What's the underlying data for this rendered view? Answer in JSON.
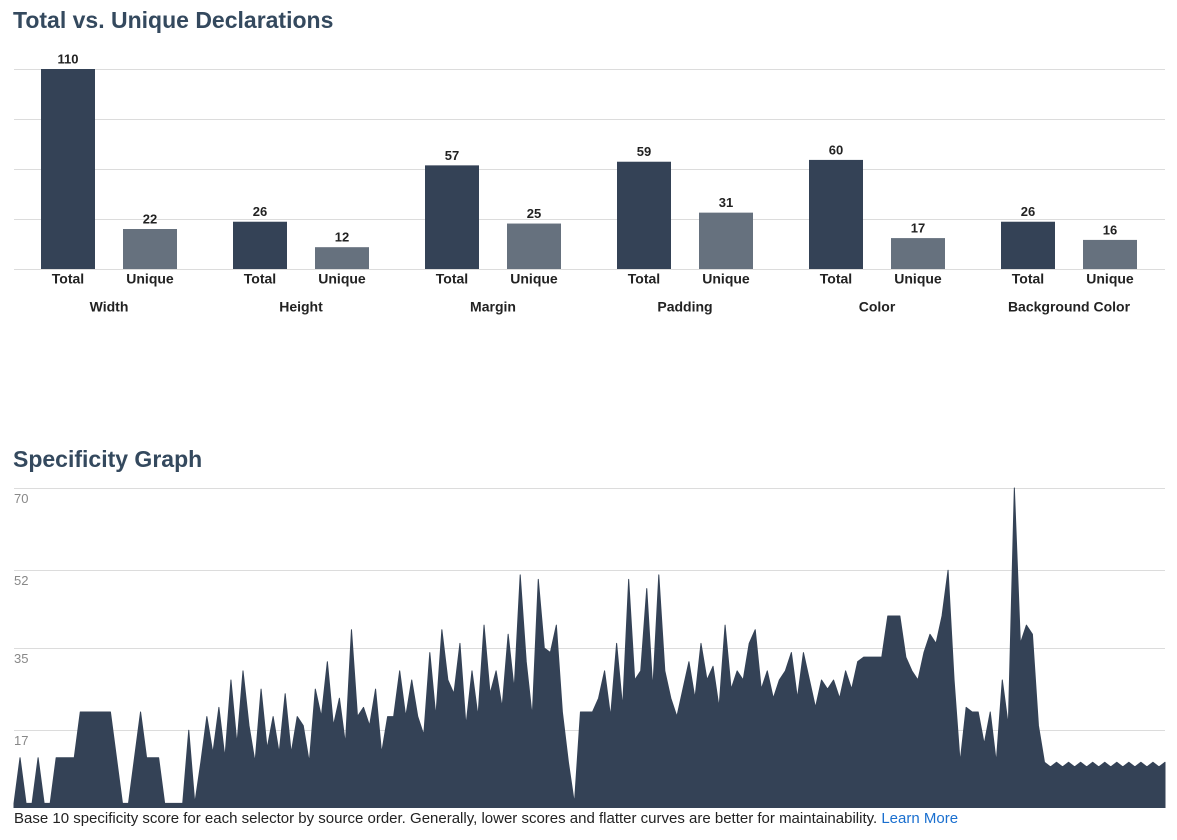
{
  "chart_data": [
    {
      "type": "bar",
      "title": "Total vs. Unique Declarations",
      "categories": [
        "Width",
        "Height",
        "Margin",
        "Padding",
        "Color",
        "Background Color"
      ],
      "series": [
        {
          "name": "Total",
          "color": "#344256",
          "values": [
            110,
            26,
            57,
            59,
            60,
            26
          ]
        },
        {
          "name": "Unique",
          "color": "#66717e",
          "values": [
            22,
            12,
            25,
            31,
            17,
            16
          ]
        }
      ],
      "ylim": [
        0,
        110
      ],
      "yticks": [
        0,
        27.5,
        55,
        82.5,
        110
      ],
      "grid": true
    },
    {
      "type": "area",
      "title": "Specificity Graph",
      "color": "#344256",
      "values": [
        1,
        11,
        1,
        1,
        11,
        1,
        1,
        11,
        11,
        11,
        11,
        21,
        21,
        21,
        21,
        21,
        21,
        11,
        1,
        1,
        11,
        21,
        11,
        11,
        11,
        1,
        1,
        1,
        1,
        17,
        1,
        10,
        20,
        12,
        22,
        11,
        28,
        14,
        30,
        18,
        10,
        26,
        13,
        20,
        12,
        25,
        12,
        20,
        18,
        10,
        26,
        20,
        32,
        18,
        24,
        14,
        39,
        20,
        22,
        18,
        26,
        12,
        20,
        20,
        30,
        20,
        28,
        20,
        16,
        34,
        20,
        39,
        28,
        25,
        36,
        18,
        30,
        20,
        40,
        25,
        30,
        22,
        38,
        26,
        51,
        32,
        20,
        50,
        35,
        34,
        40,
        21,
        10,
        1,
        21,
        21,
        21,
        24,
        30,
        20,
        36,
        22,
        50,
        28,
        30,
        48,
        26,
        51,
        30,
        24,
        20,
        26,
        32,
        24,
        36,
        28,
        31,
        22,
        40,
        26,
        30,
        28,
        36,
        39,
        26,
        30,
        24,
        28,
        30,
        34,
        24,
        34,
        28,
        22,
        28,
        26,
        28,
        24,
        30,
        26,
        32,
        33,
        33,
        33,
        33,
        42,
        42,
        42,
        33,
        30,
        28,
        34,
        38,
        36,
        42,
        52,
        28,
        10,
        22,
        21,
        21,
        14,
        21,
        10,
        28,
        18,
        70,
        36,
        40,
        38,
        18,
        10,
        9,
        10,
        9,
        10,
        9,
        10,
        9,
        10,
        9,
        10,
        9,
        10,
        9,
        10,
        9,
        10,
        9,
        10,
        9,
        10
      ],
      "ylim": [
        0,
        70
      ],
      "yticks": [
        17,
        35,
        52,
        70
      ],
      "grid": true
    }
  ],
  "caption": "Base 10 specificity score for each selector by source order. Generally, lower scores and flatter curves are better for maintainability.",
  "link": "Learn More"
}
